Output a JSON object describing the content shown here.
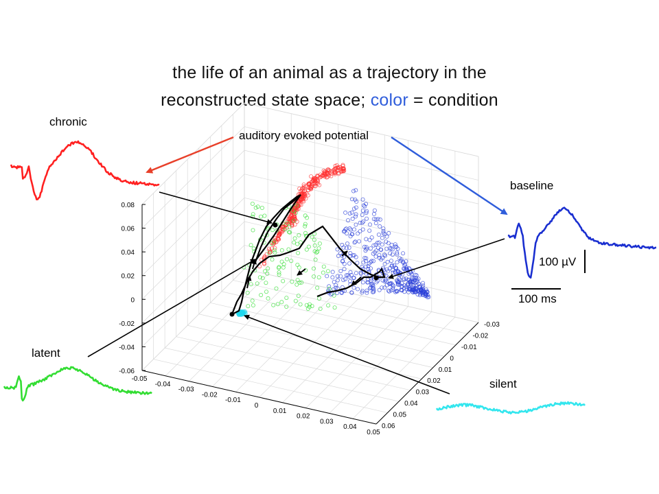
{
  "title": {
    "line1": "the life of an animal as a trajectory in the",
    "line2_prefix": "reconstructed state space; ",
    "line2_color_word": "color",
    "line2_suffix": " = condition"
  },
  "annotation": "auditory evoked potential",
  "conditions": [
    {
      "key": "chronic",
      "label": "chronic",
      "color": "#ff2020"
    },
    {
      "key": "baseline",
      "label": "baseline",
      "color": "#1a2fd0"
    },
    {
      "key": "latent",
      "label": "latent",
      "color": "#33dd33"
    },
    {
      "key": "silent",
      "label": "silent",
      "color": "#33e6ee"
    }
  ],
  "scale_bar": {
    "voltage": "100 µV",
    "time": "100 ms"
  },
  "colors": {
    "title_accent": "#2f5ddb",
    "arrow_red": "#e8402a",
    "arrow_blue": "#2f5ddb",
    "trajectory": "#000000"
  },
  "chart_data": {
    "type": "scatter",
    "projection": "3d",
    "vertical_axis": {
      "ticks": [
        "0.08",
        "0.06",
        "0.04",
        "0.02",
        "0",
        "-0.02",
        "-0.04",
        "-0.06"
      ]
    },
    "front_axis": {
      "ticks": [
        "-0.05",
        "-0.04",
        "-0.03",
        "-0.02",
        "-0.01",
        "0",
        "0.01",
        "0.02",
        "0.03",
        "0.04",
        "0.05"
      ]
    },
    "side_axis": {
      "ticks": [
        "-0.03",
        "-0.02",
        "-0.01",
        "0",
        "0.01",
        "0.02",
        "0.03",
        "0.04",
        "0.05",
        "0.06"
      ]
    },
    "grid": true,
    "series": [
      {
        "name": "chronic",
        "color": "#ff3030"
      },
      {
        "name": "baseline",
        "color": "#2a3fd8"
      },
      {
        "name": "latent",
        "color": "#33dd33"
      },
      {
        "name": "silent",
        "color": "#22d8ee"
      }
    ]
  }
}
